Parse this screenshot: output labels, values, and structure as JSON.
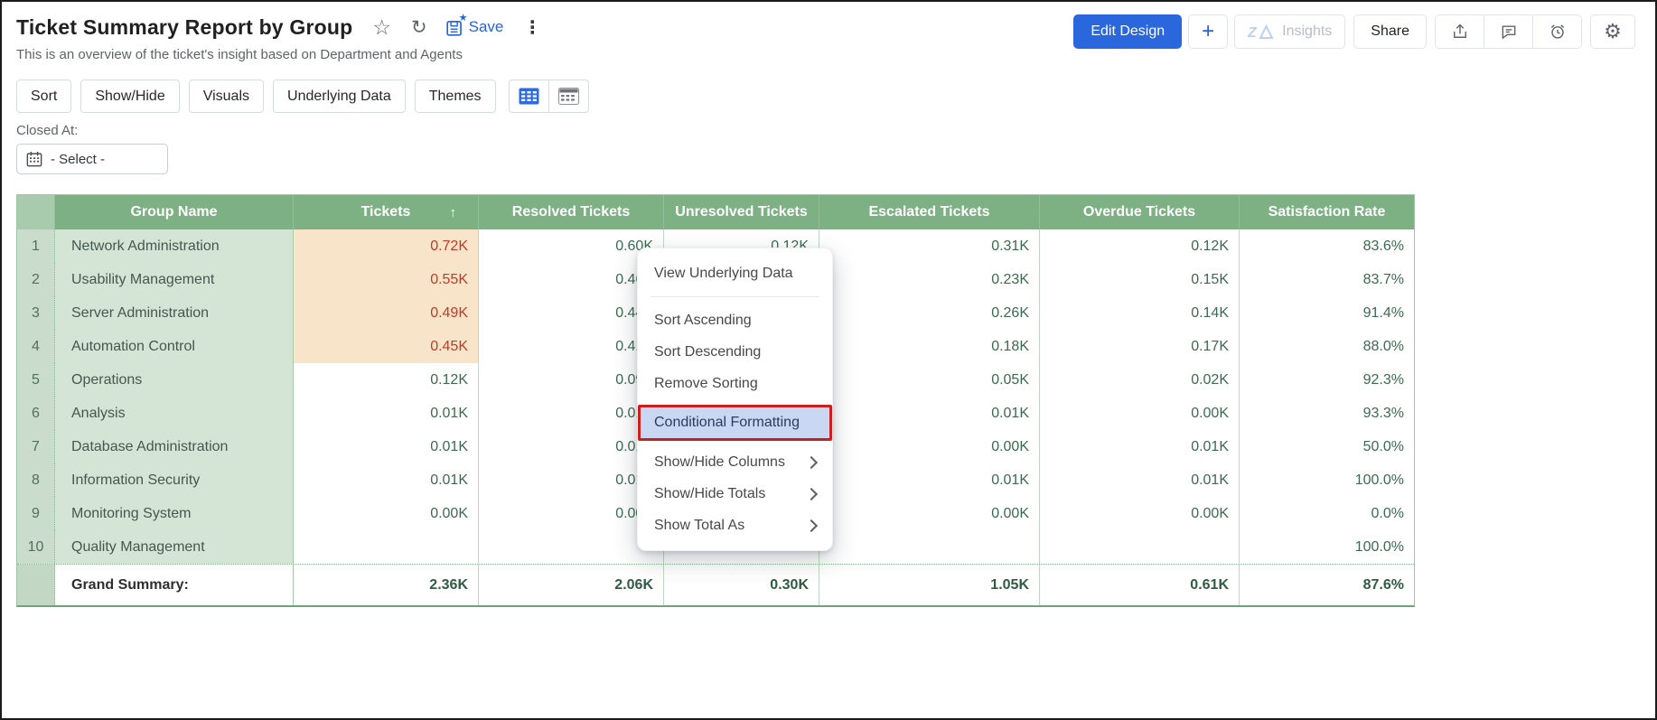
{
  "window": {
    "title": "Ticket Summary Report by Group",
    "subtitle": "This is an overview of the ticket's insight based on Department and Agents"
  },
  "icons": {
    "star": "☆",
    "refresh": "↻",
    "kebab": "⋮",
    "plus": "+",
    "settings": "⚙",
    "sort_asc": "↑",
    "zia": "Zia",
    "save": "floppy-with-star",
    "calendar": "calendar-grid",
    "table_view": "table-grid-blue",
    "pivot_view": "pivot-grid-gray",
    "export": "share-up-arrow",
    "comment": "speech-bubble",
    "reminder": "alarm-clock"
  },
  "title_actions": {
    "save_label": "Save"
  },
  "header_actions": {
    "edit_design": "Edit Design",
    "insights": "Insights",
    "share": "Share"
  },
  "toolbar": {
    "buttons": [
      "Sort",
      "Show/Hide",
      "Visuals",
      "Underlying Data",
      "Themes"
    ]
  },
  "filter": {
    "label": "Closed At:",
    "select_value": "- Select -"
  },
  "table": {
    "columns": [
      "Group Name",
      "Tickets",
      "Resolved Tickets",
      "Unresolved Tickets",
      "Escalated Tickets",
      "Overdue Tickets",
      "Satisfaction Rate"
    ],
    "sorted_column": "Tickets",
    "sort_direction": "ascending",
    "rows": [
      {
        "num": "1",
        "group": "Network Administration",
        "tickets": "0.72K",
        "resolved": "0.60K",
        "unresolved": "0.12K",
        "escalated": "0.31K",
        "overdue": "0.12K",
        "satisfaction": "83.6%",
        "tickets_highlighted": true
      },
      {
        "num": "2",
        "group": "Usability Management",
        "tickets": "0.55K",
        "resolved": "0.46K",
        "unresolved": "",
        "escalated": "0.23K",
        "overdue": "0.15K",
        "satisfaction": "83.7%",
        "tickets_highlighted": true
      },
      {
        "num": "3",
        "group": "Server Administration",
        "tickets": "0.49K",
        "resolved": "0.44K",
        "unresolved": "",
        "escalated": "0.26K",
        "overdue": "0.14K",
        "satisfaction": "91.4%",
        "tickets_highlighted": true
      },
      {
        "num": "4",
        "group": "Automation Control",
        "tickets": "0.45K",
        "resolved": "0.41K",
        "unresolved": "",
        "escalated": "0.18K",
        "overdue": "0.17K",
        "satisfaction": "88.0%",
        "tickets_highlighted": true
      },
      {
        "num": "5",
        "group": "Operations",
        "tickets": "0.12K",
        "resolved": "0.09K",
        "unresolved": "",
        "escalated": "0.05K",
        "overdue": "0.02K",
        "satisfaction": "92.3%",
        "tickets_highlighted": false
      },
      {
        "num": "6",
        "group": "Analysis",
        "tickets": "0.01K",
        "resolved": "0.01K",
        "unresolved": "",
        "escalated": "0.01K",
        "overdue": "0.00K",
        "satisfaction": "93.3%",
        "tickets_highlighted": false
      },
      {
        "num": "7",
        "group": "Database Administration",
        "tickets": "0.01K",
        "resolved": "0.01K",
        "unresolved": "",
        "escalated": "0.00K",
        "overdue": "0.01K",
        "satisfaction": "50.0%",
        "tickets_highlighted": false
      },
      {
        "num": "8",
        "group": "Information Security",
        "tickets": "0.01K",
        "resolved": "0.01K",
        "unresolved": "",
        "escalated": "0.01K",
        "overdue": "0.01K",
        "satisfaction": "100.0%",
        "tickets_highlighted": false
      },
      {
        "num": "9",
        "group": "Monitoring System",
        "tickets": "0.00K",
        "resolved": "0.00K",
        "unresolved": "",
        "escalated": "0.00K",
        "overdue": "0.00K",
        "satisfaction": "0.0%",
        "tickets_highlighted": false
      },
      {
        "num": "10",
        "group": "Quality Management",
        "tickets": "",
        "resolved": "",
        "unresolved": "",
        "escalated": "",
        "overdue": "",
        "satisfaction": "100.0%",
        "tickets_highlighted": false
      }
    ],
    "summary": {
      "label": "Grand Summary:",
      "tickets": "2.36K",
      "resolved": "2.06K",
      "unresolved": "0.30K",
      "escalated": "1.05K",
      "overdue": "0.61K",
      "satisfaction": "87.6%"
    }
  },
  "context_menu": {
    "items": [
      {
        "label": "View Underlying Data",
        "separator_after": true,
        "highlighted": false,
        "submenu": false
      },
      {
        "label": "Sort Ascending",
        "separator_after": false,
        "highlighted": false,
        "submenu": false
      },
      {
        "label": "Sort Descending",
        "separator_after": false,
        "highlighted": false,
        "submenu": false
      },
      {
        "label": "Remove Sorting",
        "separator_after": false,
        "highlighted": false,
        "submenu": false
      },
      {
        "label": "Conditional Formatting",
        "separator_after": false,
        "highlighted": true,
        "submenu": false
      },
      {
        "label": "Show/Hide Columns",
        "separator_after": false,
        "highlighted": false,
        "submenu": true
      },
      {
        "label": "Show/Hide Totals",
        "separator_after": false,
        "highlighted": false,
        "submenu": true
      },
      {
        "label": "Show Total As",
        "separator_after": false,
        "highlighted": false,
        "submenu": true
      }
    ]
  },
  "colors": {
    "accent_blue": "#2a66dc",
    "save_blue": "#2563d9",
    "header_green": "#7db083",
    "row_green": "#d4e5d5",
    "highlight_peach": "#f8e4c9",
    "highlight_red_text": "#c53a26",
    "number_green": "#3c6a4f",
    "menu_highlight_bg": "#c9d7f3",
    "menu_highlight_border": "#cb1e1e"
  }
}
